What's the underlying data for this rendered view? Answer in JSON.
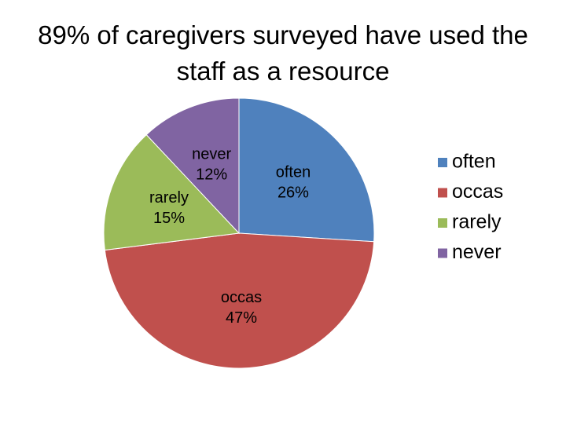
{
  "chart_data": {
    "type": "pie",
    "title": "89% of caregivers surveyed have used the staff as a resource",
    "categories": [
      "often",
      "occas",
      "rarely",
      "never"
    ],
    "values": [
      26,
      47,
      15,
      12
    ],
    "value_labels": [
      "26%",
      "47%",
      "15%",
      "12%"
    ],
    "colors": [
      "#4f81bd",
      "#c0504d",
      "#9bbb59",
      "#8064a2"
    ],
    "legend": "right"
  }
}
